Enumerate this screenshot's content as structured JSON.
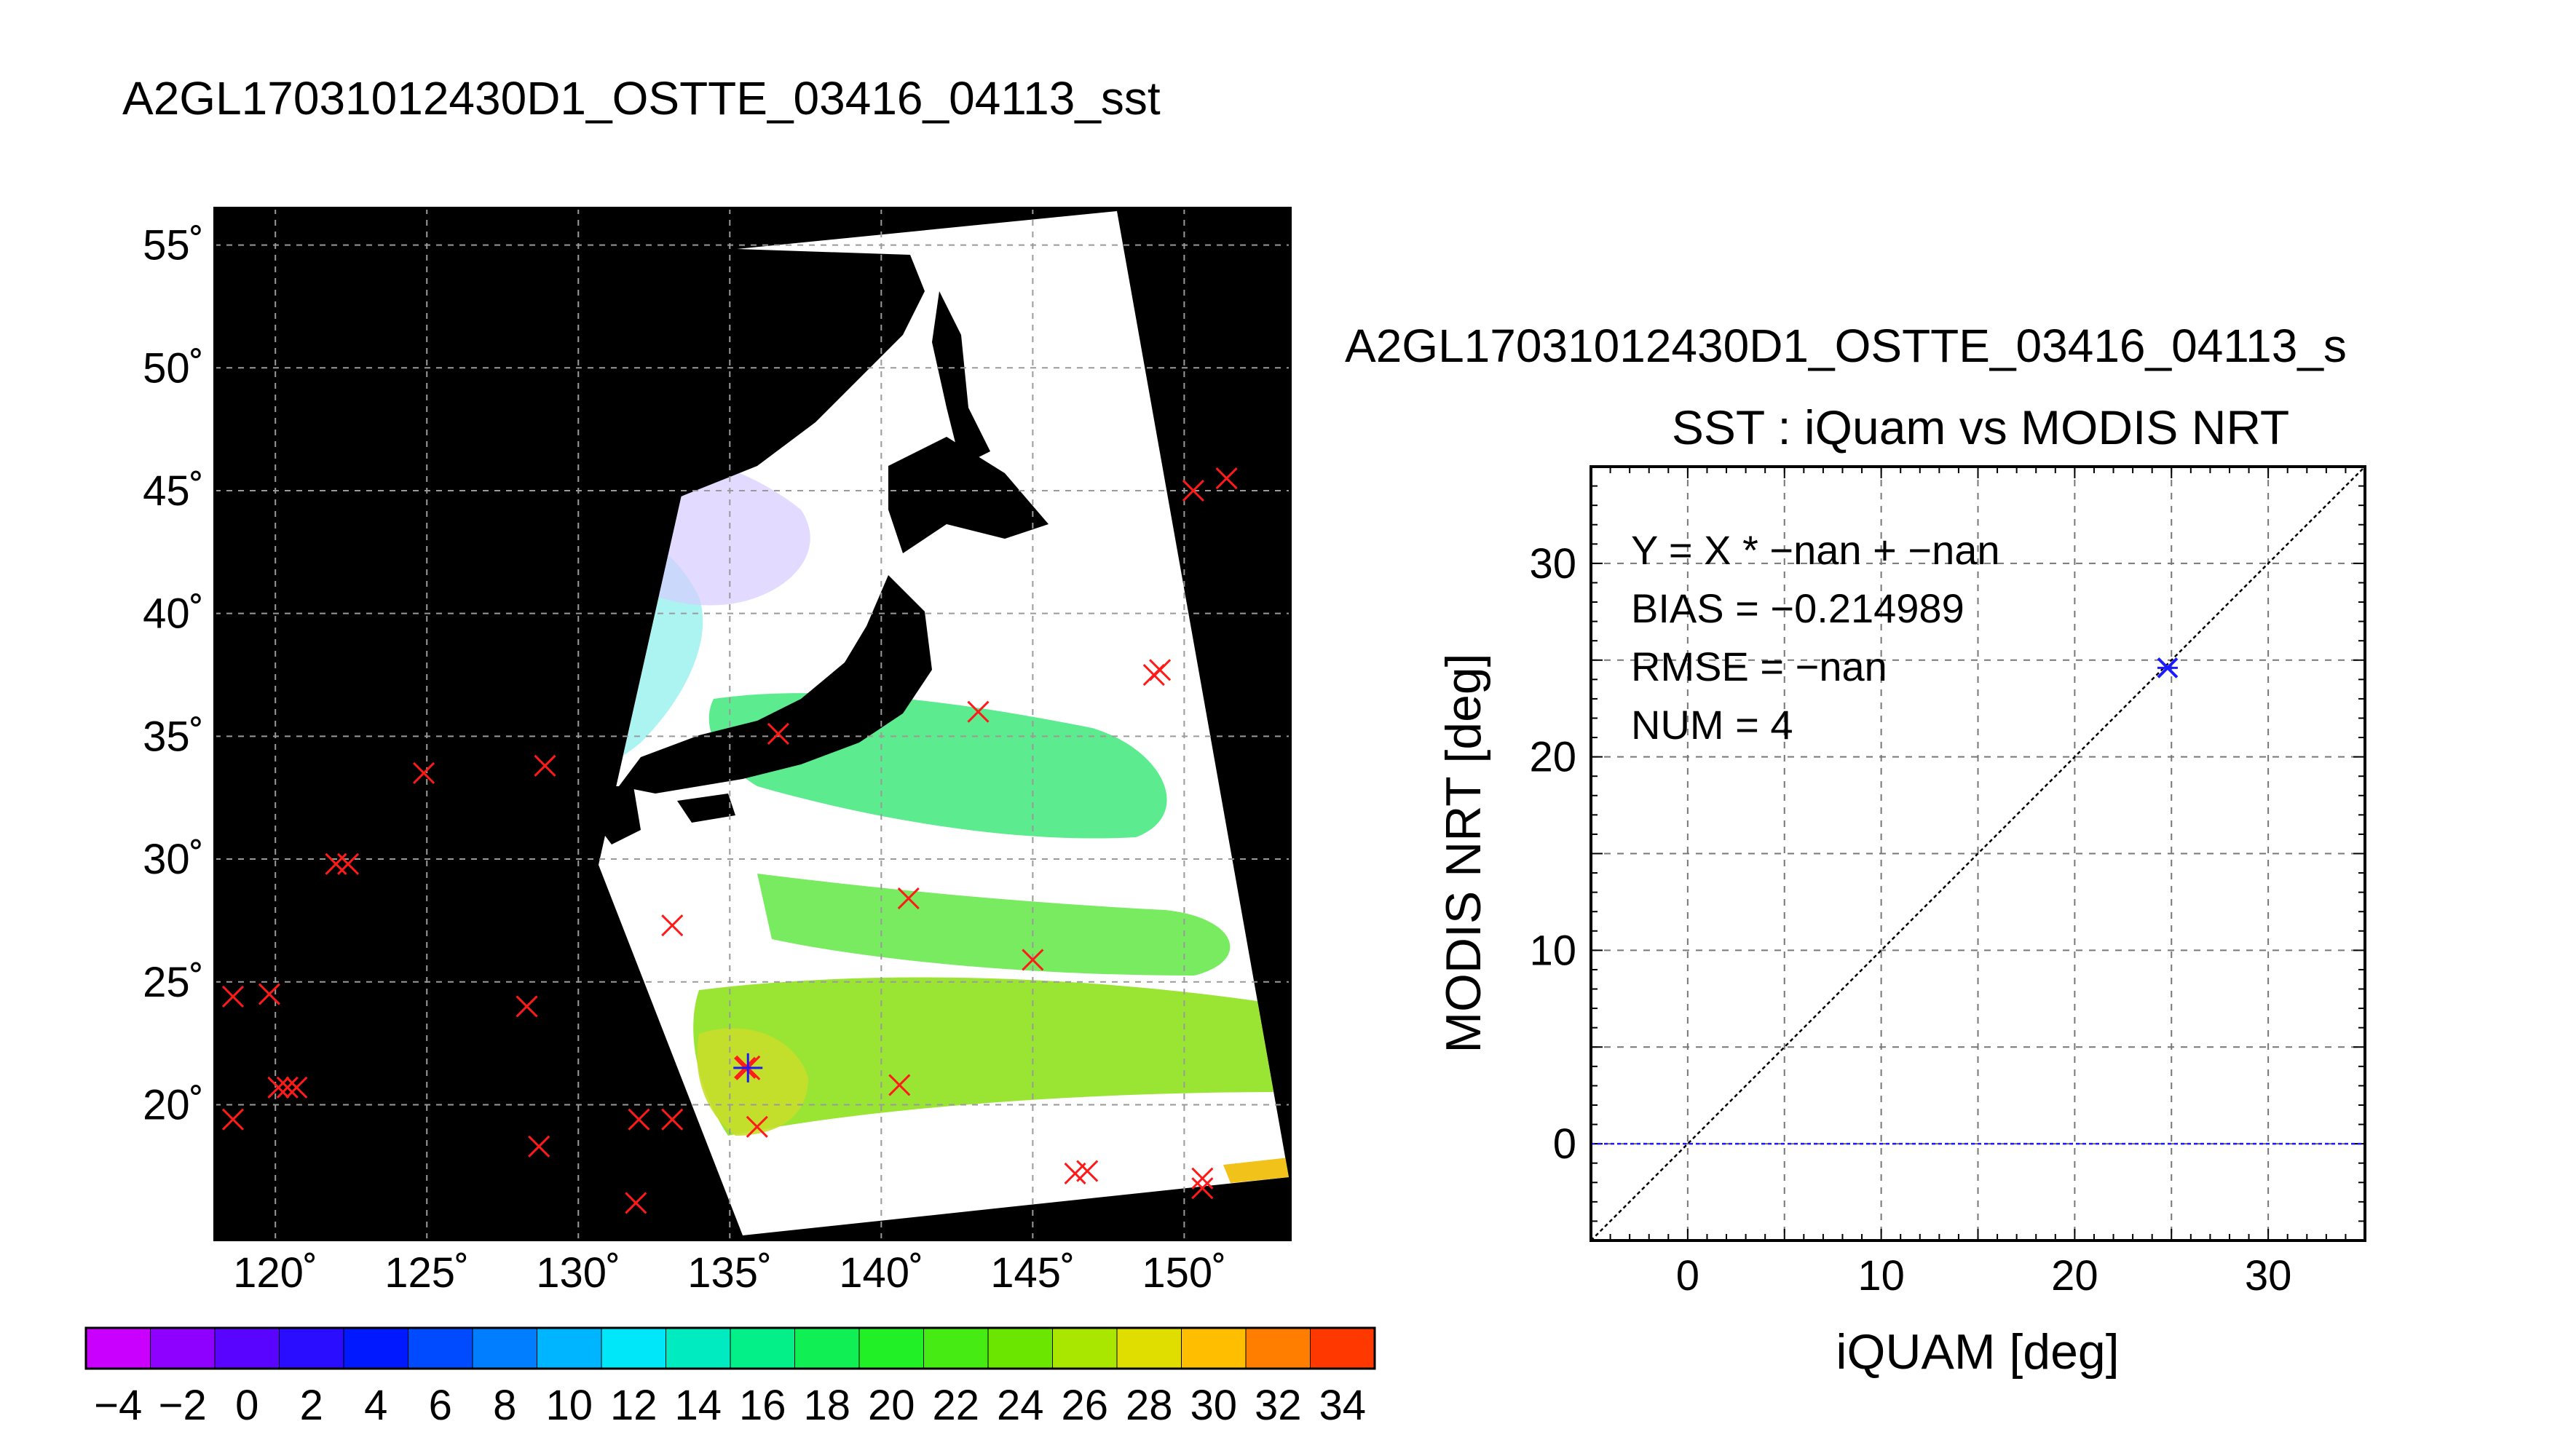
{
  "map_title": "A2GL17031012430D1_OSTTE_03416_04113_sst",
  "scatter_title_top": "A2GL17031012430D1_OSTTE_03416_04113_s",
  "chart_data": [
    {
      "type": "map",
      "title": "A2GL17031012430D1_OSTTE_03416_04113_sst",
      "xlim": [
        118,
        153.5
      ],
      "ylim": [
        14.5,
        56.5
      ],
      "lon_ticks": [
        120,
        125,
        130,
        135,
        140,
        145,
        150
      ],
      "lat_ticks": [
        55,
        50,
        45,
        40,
        35,
        30,
        25,
        20
      ],
      "lon_tick_labels": [
        "120˚",
        "125˚",
        "130˚",
        "135˚",
        "140˚",
        "145˚",
        "150˚"
      ],
      "lat_tick_labels": [
        "55˚",
        "50˚",
        "45˚",
        "40˚",
        "35˚",
        "30˚",
        "25˚",
        "20˚"
      ],
      "grid": true,
      "markers": [
        {
          "lon": 118.6,
          "lat": 24.4
        },
        {
          "lon": 119.8,
          "lat": 24.5
        },
        {
          "lon": 118.6,
          "lat": 19.4
        },
        {
          "lon": 120.1,
          "lat": 20.7
        },
        {
          "lon": 120.4,
          "lat": 20.7
        },
        {
          "lon": 120.7,
          "lat": 20.7
        },
        {
          "lon": 122.0,
          "lat": 29.8
        },
        {
          "lon": 122.4,
          "lat": 29.8
        },
        {
          "lon": 124.9,
          "lat": 33.5
        },
        {
          "lon": 128.3,
          "lat": 24.0
        },
        {
          "lon": 128.7,
          "lat": 18.3
        },
        {
          "lon": 128.9,
          "lat": 33.8
        },
        {
          "lon": 131.9,
          "lat": 16.0
        },
        {
          "lon": 132.0,
          "lat": 19.4
        },
        {
          "lon": 133.1,
          "lat": 27.3
        },
        {
          "lon": 133.1,
          "lat": 19.4
        },
        {
          "lon": 135.5,
          "lat": 21.5
        },
        {
          "lon": 135.9,
          "lat": 19.1
        },
        {
          "lon": 136.6,
          "lat": 35.1
        },
        {
          "lon": 140.6,
          "lat": 20.8
        },
        {
          "lon": 140.9,
          "lat": 28.4
        },
        {
          "lon": 143.2,
          "lat": 36.0
        },
        {
          "lon": 145.0,
          "lat": 25.9
        },
        {
          "lon": 146.4,
          "lat": 17.2
        },
        {
          "lon": 146.8,
          "lat": 17.3
        },
        {
          "lon": 149.0,
          "lat": 37.5
        },
        {
          "lon": 149.2,
          "lat": 37.7
        },
        {
          "lon": 150.3,
          "lat": 45.0
        },
        {
          "lon": 151.4,
          "lat": 45.5
        },
        {
          "lon": 150.6,
          "lat": 17.0
        },
        {
          "lon": 150.6,
          "lat": 16.6
        }
      ],
      "matchup_marker": {
        "lon": 135.6,
        "lat": 21.5
      }
    },
    {
      "type": "colorbar",
      "min": -5,
      "max": 35,
      "step": 2,
      "tick_labels": [
        "−4",
        "−2",
        "0",
        "2",
        "4",
        "6",
        "8",
        "10",
        "12",
        "14",
        "16",
        "18",
        "20",
        "22",
        "24",
        "26",
        "28",
        "30",
        "32",
        "34"
      ]
    },
    {
      "type": "scatter",
      "title": "SST : iQuam vs MODIS NRT",
      "xlabel": "iQUAM [deg]",
      "ylabel": "MODIS NRT [deg]",
      "xlim": [
        -5,
        35
      ],
      "ylim": [
        -5,
        35
      ],
      "x_ticks": [
        0,
        10,
        20,
        30
      ],
      "y_ticks": [
        0,
        10,
        20,
        30
      ],
      "grid": true,
      "points": [
        {
          "x": 24.8,
          "y": 24.6
        }
      ],
      "reference_lines": [
        "y = x",
        "y = 0"
      ],
      "annotations": [
        "Y = X * −nan + −nan",
        "BIAS = −0.214989",
        "RMSE = −nan",
        "NUM = 4"
      ]
    }
  ]
}
